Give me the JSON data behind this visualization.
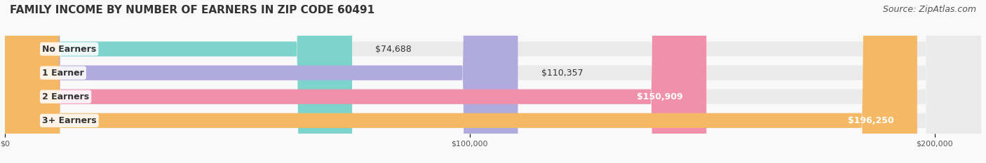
{
  "title": "FAMILY INCOME BY NUMBER OF EARNERS IN ZIP CODE 60491",
  "source": "Source: ZipAtlas.com",
  "categories": [
    "No Earners",
    "1 Earner",
    "2 Earners",
    "3+ Earners"
  ],
  "values": [
    74688,
    110357,
    150909,
    196250
  ],
  "bar_colors": [
    "#7dd4cc",
    "#b0aade",
    "#f090aa",
    "#f5b865"
  ],
  "bg_bar_color": "#ebebeb",
  "label_values": [
    "$74,688",
    "$110,357",
    "$150,909",
    "$196,250"
  ],
  "xmax": 210000,
  "xticks": [
    0,
    100000,
    200000
  ],
  "xtick_labels": [
    "$0",
    "$100,000",
    "$200,000"
  ],
  "title_fontsize": 11,
  "source_fontsize": 9,
  "label_fontsize": 9,
  "value_fontsize": 9,
  "background_color": "#f9f9f9"
}
